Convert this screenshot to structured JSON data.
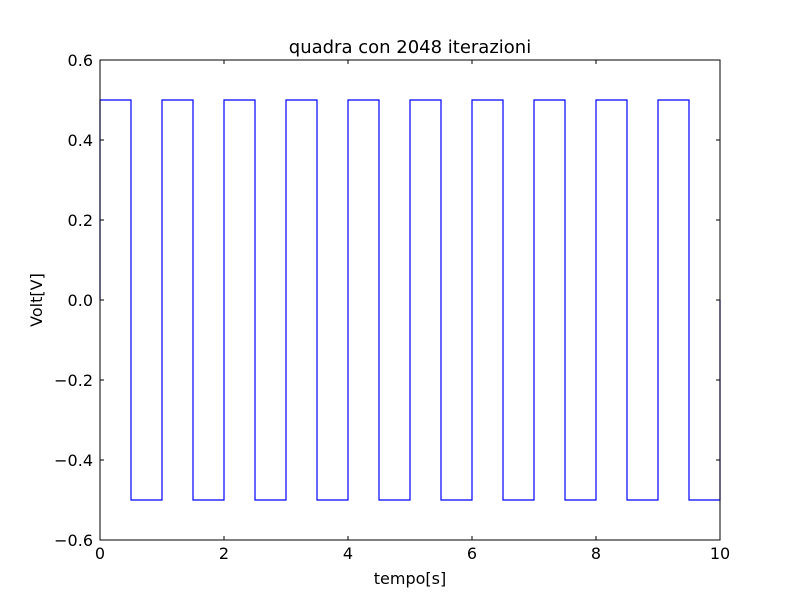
{
  "chart_data": {
    "type": "line",
    "title": "quadra con 2048 iterazioni",
    "xlabel": "tempo[s]",
    "ylabel": "Volt[V]",
    "xlim": [
      0,
      10
    ],
    "ylim": [
      -0.6,
      0.6
    ],
    "xticks": [
      0,
      2,
      4,
      6,
      8,
      10
    ],
    "xtick_labels": [
      "0",
      "2",
      "4",
      "6",
      "8",
      "10"
    ],
    "yticks": [
      -0.6,
      -0.4,
      -0.2,
      0.0,
      0.2,
      0.4,
      0.6
    ],
    "ytick_labels": [
      "−0.6",
      "−0.4",
      "−0.2",
      "0.0",
      "0.2",
      "0.4",
      "0.6"
    ],
    "grid": false,
    "series": [
      {
        "color": "#0000ff",
        "x": [
          0,
          0,
          0.5,
          0.5,
          1,
          1,
          1.5,
          1.5,
          2,
          2,
          2.5,
          2.5,
          3,
          3,
          3.5,
          3.5,
          4,
          4,
          4.5,
          4.5,
          5,
          5,
          5.5,
          5.5,
          6,
          6,
          6.5,
          6.5,
          7,
          7,
          7.5,
          7.5,
          8,
          8,
          8.5,
          8.5,
          9,
          9,
          9.5,
          9.5,
          10,
          10
        ],
        "y": [
          0.0,
          0.5,
          0.5,
          -0.5,
          -0.5,
          0.5,
          0.5,
          -0.5,
          -0.5,
          0.5,
          0.5,
          -0.5,
          -0.5,
          0.5,
          0.5,
          -0.5,
          -0.5,
          0.5,
          0.5,
          -0.5,
          -0.5,
          0.5,
          0.5,
          -0.5,
          -0.5,
          0.5,
          0.5,
          -0.5,
          -0.5,
          0.5,
          0.5,
          -0.5,
          -0.5,
          0.5,
          0.5,
          -0.5,
          -0.5,
          0.5,
          0.5,
          -0.5,
          -0.5,
          0.0
        ]
      }
    ]
  }
}
